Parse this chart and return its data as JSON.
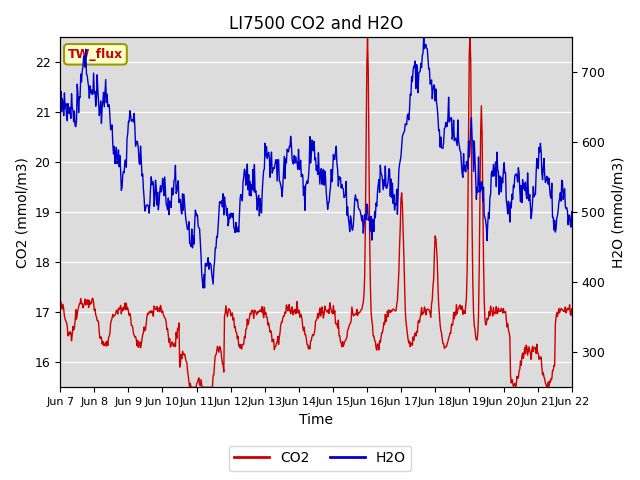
{
  "title": "LI7500 CO2 and H2O",
  "xlabel": "Time",
  "ylabel_left": "CO2 (mmol/m3)",
  "ylabel_right": "H2O (mmol/m3)",
  "co2_ylim": [
    15.5,
    22.5
  ],
  "h2o_ylim": [
    250,
    750
  ],
  "xtick_labels": [
    "Jun 7",
    "Jun 8",
    "Jun 9",
    "Jun 10",
    "Jun 11",
    "Jun 12",
    "Jun 13",
    "Jun 14",
    "Jun 15",
    "Jun 16",
    "Jun 17",
    "Jun 18",
    "Jun 19",
    "Jun 20",
    "Jun 21",
    "Jun 22"
  ],
  "co2_color": "#cc0000",
  "h2o_color": "#0000cc",
  "bg_color": "#dcdcdc",
  "tw_flux_label": "TW_flux",
  "tw_flux_bg": "#ffffcc",
  "tw_flux_border": "#999900",
  "tw_flux_text_color": "#cc0000",
  "legend_co2": "CO2",
  "legend_h2o": "H2O",
  "title_fontsize": 12,
  "axis_label_fontsize": 10,
  "tick_fontsize": 9,
  "linewidth": 1.0
}
